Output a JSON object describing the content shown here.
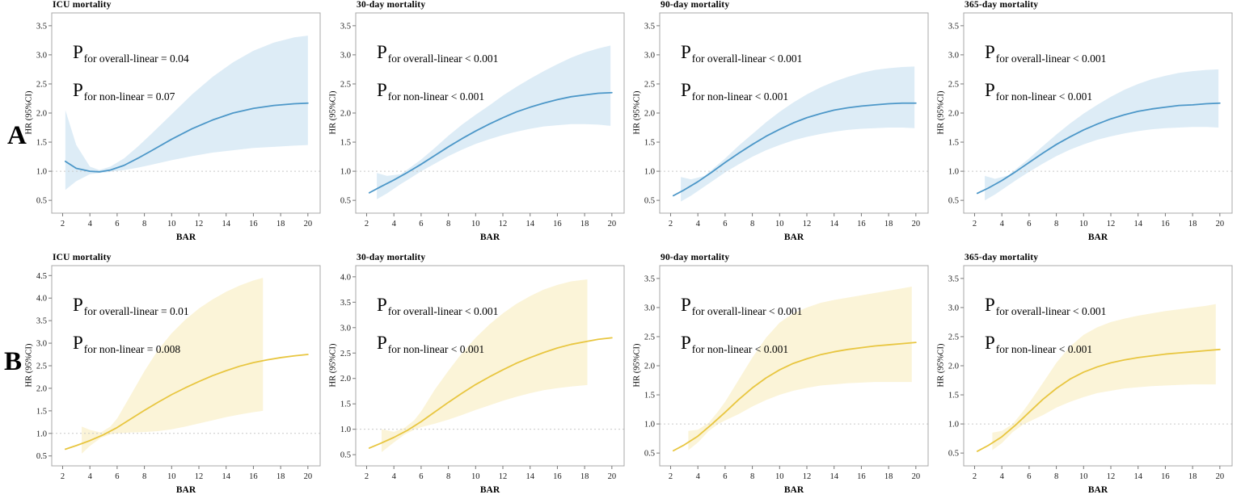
{
  "figure": {
    "row_labels": [
      "A",
      "B"
    ],
    "p_symbol": "P",
    "axis_color": "#a8a8a8",
    "refline_color": "#c9c9c9"
  },
  "chart_data": [
    {
      "type": "line",
      "title": "ICU mortality",
      "xlabel": "BAR",
      "ylabel": "HR (95%CI)",
      "p_overall": "for overall-linear = 0.04",
      "p_nonlinear": "for non-linear = 0.07",
      "line_color": "#4c97c8",
      "band_color": "#ddecf6",
      "xlim": [
        1.2,
        20.9
      ],
      "ylim": [
        0.28,
        3.72
      ],
      "refline": 1.0,
      "xticks": [
        2,
        4,
        6,
        8,
        10,
        12,
        14,
        16,
        18,
        20
      ],
      "yticks": [
        0.5,
        1.0,
        1.5,
        2.0,
        2.5,
        3.0,
        3.5
      ],
      "curve": {
        "x": [
          2.2,
          3,
          4,
          4.7,
          5.5,
          6.5,
          7.5,
          8.5,
          10,
          11.5,
          13,
          14.5,
          16,
          17.5,
          19,
          20
        ],
        "y": [
          1.17,
          1.05,
          1.0,
          0.99,
          1.02,
          1.1,
          1.22,
          1.35,
          1.55,
          1.73,
          1.88,
          2.0,
          2.08,
          2.13,
          2.16,
          2.17
        ]
      },
      "band": {
        "x": [
          2.2,
          3,
          4,
          4.7,
          5.5,
          6.5,
          7.5,
          8.5,
          10,
          11.5,
          13,
          14.5,
          16,
          17.5,
          19,
          20
        ],
        "lower": [
          0.68,
          0.83,
          0.95,
          0.97,
          0.99,
          1.02,
          1.06,
          1.11,
          1.19,
          1.26,
          1.32,
          1.36,
          1.4,
          1.42,
          1.44,
          1.45
        ],
        "upper": [
          2.05,
          1.45,
          1.08,
          1.02,
          1.08,
          1.22,
          1.42,
          1.64,
          1.98,
          2.32,
          2.62,
          2.87,
          3.07,
          3.21,
          3.3,
          3.33
        ]
      }
    },
    {
      "type": "line",
      "title": "30-day mortality",
      "xlabel": "BAR",
      "ylabel": "HR (95%CI)",
      "p_overall": "for overall-linear < 0.001",
      "p_nonlinear": "for non-linear < 0.001",
      "line_color": "#4c97c8",
      "band_color": "#ddecf6",
      "xlim": [
        1.2,
        20.9
      ],
      "ylim": [
        0.28,
        3.72
      ],
      "refline": 1.0,
      "xticks": [
        2,
        4,
        6,
        8,
        10,
        12,
        14,
        16,
        18,
        20
      ],
      "yticks": [
        0.5,
        1.0,
        1.5,
        2.0,
        2.5,
        3.0,
        3.5
      ],
      "curve": {
        "x": [
          2.2,
          3,
          4,
          5,
          6,
          7,
          8,
          9,
          10,
          11,
          12,
          13,
          14,
          15,
          16,
          17,
          18,
          19,
          20
        ],
        "y": [
          0.63,
          0.73,
          0.85,
          0.98,
          1.12,
          1.27,
          1.42,
          1.56,
          1.69,
          1.81,
          1.92,
          2.02,
          2.1,
          2.17,
          2.23,
          2.28,
          2.31,
          2.34,
          2.35
        ]
      },
      "band": {
        "x": [
          2.75,
          3.5,
          4.5,
          5,
          6,
          7,
          8,
          9,
          10,
          11,
          12,
          13,
          14,
          15,
          16,
          17,
          18,
          19,
          19.9
        ],
        "lower": [
          0.52,
          0.62,
          0.78,
          0.85,
          1.0,
          1.13,
          1.26,
          1.37,
          1.47,
          1.55,
          1.62,
          1.68,
          1.73,
          1.77,
          1.79,
          1.81,
          1.81,
          1.8,
          1.78
        ],
        "upper": [
          0.97,
          0.92,
          0.95,
          1.03,
          1.2,
          1.4,
          1.61,
          1.8,
          1.97,
          2.13,
          2.3,
          2.45,
          2.59,
          2.72,
          2.84,
          2.95,
          3.04,
          3.11,
          3.16
        ]
      }
    },
    {
      "type": "line",
      "title": "90-day mortality",
      "xlabel": "BAR",
      "ylabel": "HR (95%CI)",
      "p_overall": "for overall-linear < 0.001",
      "p_nonlinear": "for non-linear < 0.001",
      "line_color": "#4c97c8",
      "band_color": "#ddecf6",
      "xlim": [
        1.2,
        20.9
      ],
      "ylim": [
        0.28,
        3.72
      ],
      "refline": 1.0,
      "xticks": [
        2,
        4,
        6,
        8,
        10,
        12,
        14,
        16,
        18,
        20
      ],
      "yticks": [
        0.5,
        1.0,
        1.5,
        2.0,
        2.5,
        3.0,
        3.5
      ],
      "curve": {
        "x": [
          2.2,
          3,
          4,
          5,
          6,
          7,
          8,
          9,
          10,
          11,
          12,
          13,
          14,
          15,
          16,
          17,
          18,
          19,
          20
        ],
        "y": [
          0.58,
          0.68,
          0.82,
          0.98,
          1.15,
          1.31,
          1.46,
          1.6,
          1.72,
          1.83,
          1.92,
          1.99,
          2.05,
          2.09,
          2.12,
          2.14,
          2.16,
          2.17,
          2.17
        ]
      },
      "band": {
        "x": [
          2.75,
          3.5,
          4.5,
          5,
          6,
          7,
          8,
          9,
          10,
          11,
          12,
          13,
          14,
          15,
          16,
          17,
          18,
          19,
          19.9
        ],
        "lower": [
          0.48,
          0.58,
          0.74,
          0.82,
          0.98,
          1.12,
          1.25,
          1.36,
          1.45,
          1.53,
          1.59,
          1.64,
          1.68,
          1.71,
          1.73,
          1.74,
          1.75,
          1.75,
          1.74
        ],
        "upper": [
          0.9,
          0.86,
          0.92,
          1.02,
          1.22,
          1.44,
          1.64,
          1.84,
          2.02,
          2.18,
          2.32,
          2.44,
          2.54,
          2.62,
          2.69,
          2.74,
          2.77,
          2.79,
          2.8
        ]
      }
    },
    {
      "type": "line",
      "title": "365-day mortality",
      "xlabel": "BAR",
      "ylabel": "HR (95%CI)",
      "p_overall": "for overall-linear < 0.001",
      "p_nonlinear": "for non-linear < 0.001",
      "line_color": "#4c97c8",
      "band_color": "#ddecf6",
      "xlim": [
        1.2,
        20.9
      ],
      "ylim": [
        0.28,
        3.72
      ],
      "refline": 1.0,
      "xticks": [
        2,
        4,
        6,
        8,
        10,
        12,
        14,
        16,
        18,
        20
      ],
      "yticks": [
        0.5,
        1.0,
        1.5,
        2.0,
        2.5,
        3.0,
        3.5
      ],
      "curve": {
        "x": [
          2.2,
          3,
          4,
          5,
          6,
          7,
          8,
          9,
          10,
          11,
          12,
          13,
          14,
          15,
          16,
          17,
          18,
          19,
          20
        ],
        "y": [
          0.62,
          0.71,
          0.84,
          0.99,
          1.15,
          1.31,
          1.46,
          1.59,
          1.71,
          1.81,
          1.9,
          1.97,
          2.03,
          2.07,
          2.1,
          2.13,
          2.14,
          2.16,
          2.17
        ]
      },
      "band": {
        "x": [
          2.75,
          3.5,
          4.5,
          5,
          6,
          7,
          8,
          9,
          10,
          11,
          12,
          13,
          14,
          15,
          16,
          17,
          18,
          19,
          19.9
        ],
        "lower": [
          0.5,
          0.6,
          0.76,
          0.84,
          0.99,
          1.13,
          1.26,
          1.37,
          1.46,
          1.54,
          1.6,
          1.65,
          1.69,
          1.72,
          1.74,
          1.75,
          1.76,
          1.76,
          1.75
        ],
        "upper": [
          0.92,
          0.87,
          0.93,
          1.03,
          1.22,
          1.43,
          1.63,
          1.82,
          1.99,
          2.14,
          2.28,
          2.4,
          2.5,
          2.58,
          2.64,
          2.69,
          2.72,
          2.74,
          2.75
        ]
      }
    },
    {
      "type": "line",
      "title": "ICU mortality",
      "xlabel": "BAR",
      "ylabel": "HR (95%CI)",
      "p_overall": "for overall-linear = 0.01",
      "p_nonlinear": "for non-linear = 0.008",
      "line_color": "#e8c640",
      "band_color": "#fbf4d8",
      "xlim": [
        1.2,
        20.9
      ],
      "ylim": [
        0.28,
        4.72
      ],
      "refline": 1.0,
      "xticks": [
        2,
        4,
        6,
        8,
        10,
        12,
        14,
        16,
        18,
        20
      ],
      "yticks": [
        0.5,
        1.0,
        1.5,
        2.0,
        2.5,
        3.0,
        3.5,
        4.0,
        4.5
      ],
      "curve": {
        "x": [
          2.2,
          3,
          4,
          5,
          6,
          7,
          8,
          9,
          10,
          11,
          12,
          13,
          14,
          15,
          16,
          17,
          18,
          19,
          20
        ],
        "y": [
          0.65,
          0.73,
          0.84,
          0.97,
          1.13,
          1.32,
          1.51,
          1.69,
          1.86,
          2.01,
          2.15,
          2.28,
          2.39,
          2.49,
          2.57,
          2.63,
          2.68,
          2.72,
          2.75
        ]
      },
      "band": {
        "x": [
          3.4,
          4,
          4.8,
          5.5,
          6,
          7,
          8,
          9,
          10,
          11,
          12,
          13,
          14,
          15,
          16,
          16.7
        ],
        "lower": [
          0.55,
          0.72,
          0.9,
          0.98,
          1.0,
          1.02,
          1.03,
          1.05,
          1.09,
          1.15,
          1.22,
          1.29,
          1.36,
          1.42,
          1.47,
          1.5
        ],
        "upper": [
          1.15,
          1.08,
          1.02,
          1.15,
          1.33,
          1.85,
          2.38,
          2.85,
          3.22,
          3.52,
          3.77,
          3.97,
          4.14,
          4.28,
          4.39,
          4.45
        ]
      }
    },
    {
      "type": "line",
      "title": "30-day mortality",
      "xlabel": "BAR",
      "ylabel": "HR (95%CI)",
      "p_overall": "for overall-linear < 0.001",
      "p_nonlinear": "for non-linear < 0.001",
      "line_color": "#e8c640",
      "band_color": "#fbf4d8",
      "xlim": [
        1.2,
        20.9
      ],
      "ylim": [
        0.28,
        4.22
      ],
      "refline": 1.0,
      "xticks": [
        2,
        4,
        6,
        8,
        10,
        12,
        14,
        16,
        18,
        20
      ],
      "yticks": [
        0.5,
        1.0,
        1.5,
        2.0,
        2.5,
        3.0,
        3.5,
        4.0
      ],
      "curve": {
        "x": [
          2.2,
          3,
          4,
          5,
          6,
          7,
          8,
          9,
          10,
          11,
          12,
          13,
          14,
          15,
          16,
          17,
          18,
          19,
          20
        ],
        "y": [
          0.63,
          0.72,
          0.84,
          0.98,
          1.15,
          1.34,
          1.53,
          1.71,
          1.88,
          2.03,
          2.17,
          2.3,
          2.41,
          2.51,
          2.6,
          2.67,
          2.72,
          2.77,
          2.8
        ]
      },
      "band": {
        "x": [
          3.1,
          4,
          4.8,
          5.5,
          6,
          7,
          8,
          9,
          10,
          11,
          12,
          13,
          14,
          15,
          16,
          17,
          18.2
        ],
        "lower": [
          0.55,
          0.74,
          0.9,
          0.99,
          1.04,
          1.11,
          1.19,
          1.28,
          1.38,
          1.47,
          1.56,
          1.64,
          1.71,
          1.77,
          1.81,
          1.84,
          1.87
        ],
        "upper": [
          1.0,
          0.95,
          1.03,
          1.18,
          1.35,
          1.78,
          2.15,
          2.5,
          2.8,
          3.06,
          3.28,
          3.47,
          3.62,
          3.75,
          3.84,
          3.91,
          3.95
        ]
      }
    },
    {
      "type": "line",
      "title": "90-day mortality",
      "xlabel": "BAR",
      "ylabel": "HR (95%CI)",
      "p_overall": "for overall-linear < 0.001",
      "p_nonlinear": "for non-linear < 0.001",
      "line_color": "#e8c640",
      "band_color": "#fbf4d8",
      "xlim": [
        1.2,
        20.9
      ],
      "ylim": [
        0.28,
        3.72
      ],
      "refline": 1.0,
      "xticks": [
        2,
        4,
        6,
        8,
        10,
        12,
        14,
        16,
        18,
        20
      ],
      "yticks": [
        0.5,
        1.0,
        1.5,
        2.0,
        2.5,
        3.0,
        3.5
      ],
      "curve": {
        "x": [
          2.2,
          3,
          4,
          5,
          6,
          7,
          8,
          9,
          10,
          11,
          12,
          13,
          14,
          15,
          16,
          17,
          18,
          19,
          20
        ],
        "y": [
          0.54,
          0.64,
          0.79,
          0.99,
          1.2,
          1.42,
          1.62,
          1.79,
          1.93,
          2.04,
          2.12,
          2.19,
          2.24,
          2.28,
          2.31,
          2.34,
          2.36,
          2.38,
          2.4
        ]
      },
      "band": {
        "x": [
          3.3,
          4,
          4.8,
          5.5,
          6,
          7,
          8,
          9,
          10,
          11,
          12,
          13,
          14,
          15,
          16,
          17,
          18,
          19,
          19.7
        ],
        "lower": [
          0.55,
          0.68,
          0.88,
          1.0,
          1.06,
          1.17,
          1.3,
          1.41,
          1.5,
          1.57,
          1.62,
          1.66,
          1.68,
          1.7,
          1.71,
          1.72,
          1.72,
          1.72,
          1.72
        ],
        "upper": [
          0.88,
          0.9,
          1.02,
          1.22,
          1.38,
          1.76,
          2.14,
          2.48,
          2.74,
          2.9,
          3.0,
          3.08,
          3.13,
          3.17,
          3.21,
          3.25,
          3.29,
          3.33,
          3.36
        ]
      }
    },
    {
      "type": "line",
      "title": "365-day mortality",
      "xlabel": "BAR",
      "ylabel": "HR (95%CI)",
      "p_overall": "for overall-linear < 0.001",
      "p_nonlinear": "for non-linear < 0.001",
      "line_color": "#e8c640",
      "band_color": "#fbf4d8",
      "xlim": [
        1.2,
        20.9
      ],
      "ylim": [
        0.28,
        3.72
      ],
      "refline": 1.0,
      "xticks": [
        2,
        4,
        6,
        8,
        10,
        12,
        14,
        16,
        18,
        20
      ],
      "yticks": [
        0.5,
        1.0,
        1.5,
        2.0,
        2.5,
        3.0,
        3.5
      ],
      "curve": {
        "x": [
          2.2,
          3,
          4,
          5,
          6,
          7,
          8,
          9,
          10,
          11,
          12,
          13,
          14,
          15,
          16,
          17,
          18,
          19,
          20
        ],
        "y": [
          0.53,
          0.63,
          0.78,
          0.98,
          1.2,
          1.42,
          1.61,
          1.77,
          1.89,
          1.98,
          2.05,
          2.1,
          2.14,
          2.17,
          2.2,
          2.22,
          2.24,
          2.26,
          2.28
        ]
      },
      "band": {
        "x": [
          3.3,
          4,
          4.8,
          5.5,
          6,
          7,
          8,
          9,
          10,
          11,
          12,
          13,
          14,
          15,
          16,
          17,
          18,
          19,
          19.7
        ],
        "lower": [
          0.55,
          0.67,
          0.86,
          0.98,
          1.04,
          1.15,
          1.28,
          1.38,
          1.46,
          1.53,
          1.57,
          1.61,
          1.63,
          1.65,
          1.66,
          1.67,
          1.68,
          1.68,
          1.68
        ],
        "upper": [
          0.85,
          0.88,
          1.0,
          1.2,
          1.36,
          1.7,
          2.05,
          2.33,
          2.53,
          2.66,
          2.75,
          2.81,
          2.86,
          2.9,
          2.94,
          2.97,
          3.0,
          3.03,
          3.06
        ]
      }
    }
  ]
}
